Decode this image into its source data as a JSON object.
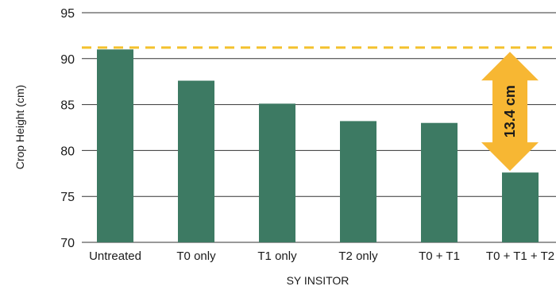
{
  "chart_data": {
    "type": "bar",
    "categories": [
      "Untreated",
      "T0 only",
      "T1 only",
      "T2 only",
      "T0 + T1",
      "T0 + T1 + T2"
    ],
    "values": [
      91.0,
      87.6,
      85.1,
      83.2,
      83.0,
      77.6
    ],
    "xlabel": "SY INSITOR",
    "ylabel": "Crop Height (cm)",
    "ylim": [
      70,
      95
    ],
    "yticks": [
      70,
      75,
      80,
      85,
      90,
      95
    ],
    "grid": true,
    "bar_color": "#3d7a63",
    "reference_line": {
      "value": 91.2,
      "style": "dashed",
      "color": "#f4c12e"
    },
    "annotation": {
      "text": "13.4 cm",
      "from": 91.0,
      "to": 77.6,
      "shape": "double-arrow",
      "color": "#f7b733"
    }
  }
}
